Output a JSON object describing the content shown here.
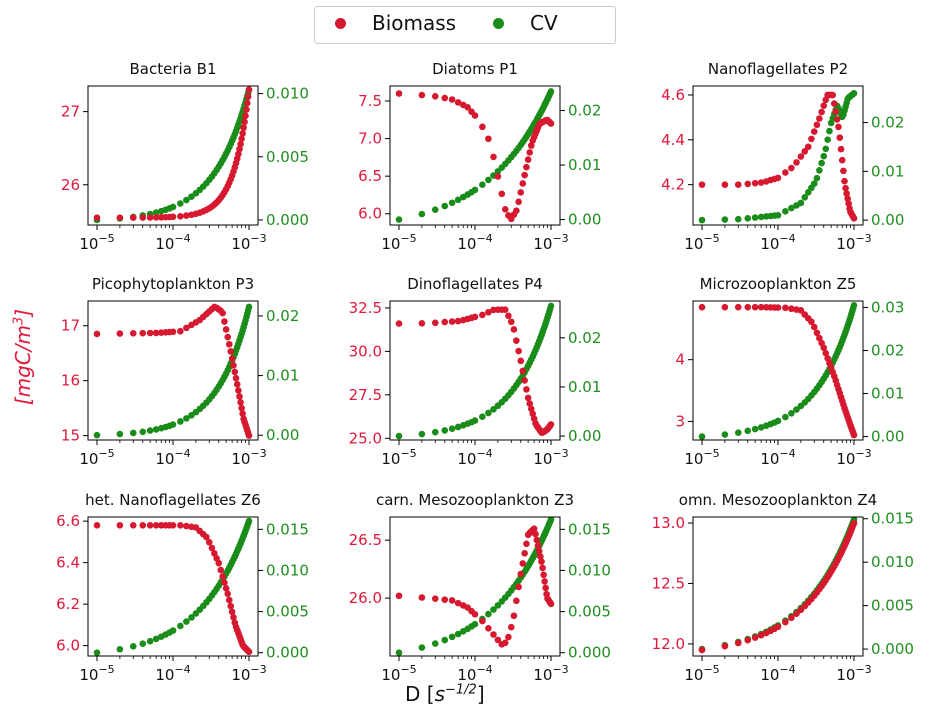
{
  "legend": {
    "biomass": "Biomass",
    "cv": "CV"
  },
  "ylabel": {
    "main": "[mgC/m",
    "sup": "3",
    "end": "]"
  },
  "xlabel": {
    "main": "D [",
    "unit": "s",
    "sup": "−1/2",
    "end": "]"
  },
  "colors": {
    "biomass": "#d7192f",
    "cv": "#198c19",
    "left_tick": "#e0183c",
    "right_tick": "#1f8f1f"
  },
  "chart_data": [
    {
      "title": "Bacteria B1",
      "type": "scatter",
      "xscale": "log",
      "xlim": [
        1e-05,
        0.001
      ],
      "left": {
        "ylim": [
          25.45,
          27.35
        ],
        "ticks": [
          "26",
          "27"
        ],
        "tickvals": [
          26,
          27
        ]
      },
      "right": {
        "ylim": [
          -0.0004,
          0.0106
        ],
        "ticks": [
          "0.000",
          "0.005",
          "0.010"
        ],
        "tickvals": [
          0,
          0.005,
          0.01
        ]
      },
      "biomass": {
        "kind": "mono",
        "start": 25.55,
        "end": 27.3,
        "shape": 5
      },
      "cv": {
        "kind": "mono",
        "start": 0.0,
        "end": 0.0103,
        "shape": 2.2
      }
    },
    {
      "title": "Diatoms P1",
      "type": "scatter",
      "xscale": "log",
      "xlim": [
        1e-05,
        0.001
      ],
      "left": {
        "ylim": [
          5.85,
          7.7
        ],
        "ticks": [
          "6.0",
          "6.5",
          "7.0",
          "7.5"
        ],
        "tickvals": [
          6.0,
          6.5,
          7.0,
          7.5
        ]
      },
      "right": {
        "ylim": [
          -0.001,
          0.0245
        ],
        "ticks": [
          "0.00",
          "0.01",
          "0.02"
        ],
        "tickvals": [
          0,
          0.01,
          0.02
        ]
      },
      "biomass": {
        "kind": "points",
        "pts": [
          [
            -5,
            7.6
          ],
          [
            -4.7,
            7.58
          ],
          [
            -4.5,
            7.56
          ],
          [
            -4.3,
            7.52
          ],
          [
            -4.1,
            7.42
          ],
          [
            -3.95,
            7.25
          ],
          [
            -3.8,
            6.95
          ],
          [
            -3.7,
            6.5
          ],
          [
            -3.6,
            6.05
          ],
          [
            -3.53,
            5.92
          ],
          [
            -3.45,
            6.05
          ],
          [
            -3.35,
            6.5
          ],
          [
            -3.25,
            6.95
          ],
          [
            -3.15,
            7.2
          ],
          [
            -3.05,
            7.25
          ],
          [
            -3.0,
            7.2
          ]
        ]
      },
      "cv": {
        "kind": "mono",
        "start": 0.0,
        "end": 0.0235,
        "shape": 1.2
      }
    },
    {
      "title": "Nanoflagellates P2",
      "type": "scatter",
      "xscale": "log",
      "xlim": [
        1e-05,
        0.001
      ],
      "left": {
        "ylim": [
          4.02,
          4.64
        ],
        "ticks": [
          "4.2",
          "4.4",
          "4.6"
        ],
        "tickvals": [
          4.2,
          4.4,
          4.6
        ]
      },
      "right": {
        "ylim": [
          -0.001,
          0.0275
        ],
        "ticks": [
          "0.00",
          "0.01",
          "0.02"
        ],
        "tickvals": [
          0,
          0.01,
          0.02
        ]
      },
      "biomass": {
        "kind": "points",
        "pts": [
          [
            -5,
            4.2
          ],
          [
            -4.5,
            4.2
          ],
          [
            -4.2,
            4.21
          ],
          [
            -4.0,
            4.23
          ],
          [
            -3.8,
            4.28
          ],
          [
            -3.6,
            4.37
          ],
          [
            -3.45,
            4.5
          ],
          [
            -3.35,
            4.6
          ],
          [
            -3.28,
            4.6
          ],
          [
            -3.2,
            4.45
          ],
          [
            -3.12,
            4.2
          ],
          [
            -3.05,
            4.08
          ],
          [
            -3.0,
            4.05
          ]
        ]
      },
      "cv": {
        "kind": "points",
        "pts": [
          [
            -5,
            0.0
          ],
          [
            -4.5,
            0.0002
          ],
          [
            -4.0,
            0.001
          ],
          [
            -3.7,
            0.0035
          ],
          [
            -3.5,
            0.008
          ],
          [
            -3.38,
            0.014
          ],
          [
            -3.3,
            0.02
          ],
          [
            -3.22,
            0.0235
          ],
          [
            -3.15,
            0.021
          ],
          [
            -3.08,
            0.025
          ],
          [
            -3.0,
            0.026
          ]
        ]
      }
    },
    {
      "title": "Picophytoplankton P3",
      "type": "scatter",
      "xscale": "log",
      "xlim": [
        1e-05,
        0.001
      ],
      "left": {
        "ylim": [
          14.92,
          17.45
        ],
        "ticks": [
          "15",
          "16",
          "17"
        ],
        "tickvals": [
          15,
          16,
          17
        ]
      },
      "right": {
        "ylim": [
          -0.0008,
          0.0225
        ],
        "ticks": [
          "0.00",
          "0.01",
          "0.02"
        ],
        "tickvals": [
          0,
          0.01,
          0.02
        ]
      },
      "biomass": {
        "kind": "points",
        "pts": [
          [
            -5,
            16.85
          ],
          [
            -4.6,
            16.86
          ],
          [
            -4.2,
            16.87
          ],
          [
            -3.9,
            16.9
          ],
          [
            -3.65,
            17.1
          ],
          [
            -3.45,
            17.35
          ],
          [
            -3.35,
            17.25
          ],
          [
            -3.25,
            16.6
          ],
          [
            -3.15,
            15.9
          ],
          [
            -3.07,
            15.3
          ],
          [
            -3.0,
            15.0
          ]
        ]
      },
      "cv": {
        "kind": "mono",
        "start": 0.0,
        "end": 0.0215,
        "shape": 2.4
      }
    },
    {
      "title": "Dinoflagellates P4",
      "type": "scatter",
      "xscale": "log",
      "xlim": [
        1e-05,
        0.001
      ],
      "left": {
        "ylim": [
          24.9,
          32.9
        ],
        "ticks": [
          "25.0",
          "27.5",
          "30.0",
          "32.5"
        ],
        "tickvals": [
          25.0,
          27.5,
          30.0,
          32.5
        ]
      },
      "right": {
        "ylim": [
          -0.0008,
          0.0275
        ],
        "ticks": [
          "0.00",
          "0.01",
          "0.02"
        ],
        "tickvals": [
          0,
          0.01,
          0.02
        ]
      },
      "biomass": {
        "kind": "points",
        "pts": [
          [
            -5,
            31.6
          ],
          [
            -4.6,
            31.62
          ],
          [
            -4.2,
            31.75
          ],
          [
            -3.9,
            32.1
          ],
          [
            -3.75,
            32.4
          ],
          [
            -3.6,
            32.4
          ],
          [
            -3.5,
            31.5
          ],
          [
            -3.4,
            29.5
          ],
          [
            -3.3,
            27.3
          ],
          [
            -3.2,
            25.8
          ],
          [
            -3.12,
            25.3
          ],
          [
            -3.05,
            25.5
          ],
          [
            -3.0,
            25.8
          ]
        ]
      },
      "cv": {
        "kind": "mono",
        "start": 0.0,
        "end": 0.0265,
        "shape": 2.0
      }
    },
    {
      "title": "Microzooplankton Z5",
      "type": "scatter",
      "xscale": "log",
      "xlim": [
        1e-05,
        0.001
      ],
      "left": {
        "ylim": [
          2.7,
          4.95
        ],
        "ticks": [
          "3",
          "4"
        ],
        "tickvals": [
          3,
          4
        ]
      },
      "right": {
        "ylim": [
          -0.0008,
          0.0315
        ],
        "ticks": [
          "0.00",
          "0.01",
          "0.02",
          "0.03"
        ],
        "tickvals": [
          0,
          0.01,
          0.02,
          0.03
        ]
      },
      "biomass": {
        "kind": "points",
        "pts": [
          [
            -5,
            4.85
          ],
          [
            -4.6,
            4.85
          ],
          [
            -4.2,
            4.85
          ],
          [
            -3.9,
            4.84
          ],
          [
            -3.7,
            4.8
          ],
          [
            -3.55,
            4.6
          ],
          [
            -3.4,
            4.2
          ],
          [
            -3.25,
            3.7
          ],
          [
            -3.12,
            3.2
          ],
          [
            -3.05,
            2.95
          ],
          [
            -3.0,
            2.78
          ]
        ]
      },
      "cv": {
        "kind": "mono",
        "start": 0.0,
        "end": 0.0305,
        "shape": 2.0
      }
    },
    {
      "title": "het. Nanoflagellates Z6",
      "type": "scatter",
      "xscale": "log",
      "xlim": [
        1e-05,
        0.001
      ],
      "left": {
        "ylim": [
          5.95,
          6.62
        ],
        "ticks": [
          "6.0",
          "6.2",
          "6.4",
          "6.6"
        ],
        "tickvals": [
          6.0,
          6.2,
          6.4,
          6.6
        ]
      },
      "right": {
        "ylim": [
          -0.0004,
          0.0165
        ],
        "ticks": [
          "0.000",
          "0.005",
          "0.010",
          "0.015"
        ],
        "tickvals": [
          0,
          0.005,
          0.01,
          0.015
        ]
      },
      "biomass": {
        "kind": "points",
        "pts": [
          [
            -5,
            6.58
          ],
          [
            -4.6,
            6.58
          ],
          [
            -4.2,
            6.58
          ],
          [
            -3.9,
            6.58
          ],
          [
            -3.7,
            6.57
          ],
          [
            -3.55,
            6.52
          ],
          [
            -3.4,
            6.4
          ],
          [
            -3.28,
            6.25
          ],
          [
            -3.18,
            6.1
          ],
          [
            -3.08,
            6.0
          ],
          [
            -3.0,
            5.97
          ]
        ]
      },
      "cv": {
        "kind": "mono",
        "start": 0.0,
        "end": 0.016,
        "shape": 1.6
      }
    },
    {
      "title": "carn. Mesozooplankton Z3",
      "type": "scatter",
      "xscale": "log",
      "xlim": [
        1e-05,
        0.001
      ],
      "left": {
        "ylim": [
          25.5,
          26.7
        ],
        "ticks": [
          "26.0",
          "26.5"
        ],
        "tickvals": [
          26.0,
          26.5
        ]
      },
      "right": {
        "ylim": [
          -0.0004,
          0.0165
        ],
        "ticks": [
          "0.000",
          "0.005",
          "0.010",
          "0.015"
        ],
        "tickvals": [
          0,
          0.005,
          0.01,
          0.015
        ]
      },
      "biomass": {
        "kind": "points",
        "pts": [
          [
            -5,
            26.02
          ],
          [
            -4.6,
            26.0
          ],
          [
            -4.3,
            25.98
          ],
          [
            -4.1,
            25.92
          ],
          [
            -3.9,
            25.8
          ],
          [
            -3.75,
            25.68
          ],
          [
            -3.65,
            25.6
          ],
          [
            -3.58,
            25.62
          ],
          [
            -3.5,
            25.8
          ],
          [
            -3.4,
            26.2
          ],
          [
            -3.3,
            26.55
          ],
          [
            -3.22,
            26.6
          ],
          [
            -3.12,
            26.3
          ],
          [
            -3.05,
            26.0
          ],
          [
            -3.0,
            25.95
          ]
        ]
      },
      "cv": {
        "kind": "mono",
        "start": 0.0,
        "end": 0.0162,
        "shape": 1.3
      }
    },
    {
      "title": "omn. Mesozooplankton Z4",
      "type": "scatter",
      "xscale": "log",
      "xlim": [
        1e-05,
        0.001
      ],
      "left": {
        "ylim": [
          11.9,
          13.05
        ],
        "ticks": [
          "12.0",
          "12.5",
          "13.0"
        ],
        "tickvals": [
          12.0,
          12.5,
          13.0
        ]
      },
      "right": {
        "ylim": [
          -0.0008,
          0.0152
        ],
        "ticks": [
          "0.000",
          "0.005",
          "0.010",
          "0.015"
        ],
        "tickvals": [
          0,
          0.005,
          0.01,
          0.015
        ]
      },
      "biomass": {
        "kind": "mono",
        "start": 11.95,
        "end": 13.0,
        "shape": 1.5
      },
      "cv": {
        "kind": "mono",
        "start": 0.0,
        "end": 0.0149,
        "shape": 1.5
      }
    }
  ]
}
